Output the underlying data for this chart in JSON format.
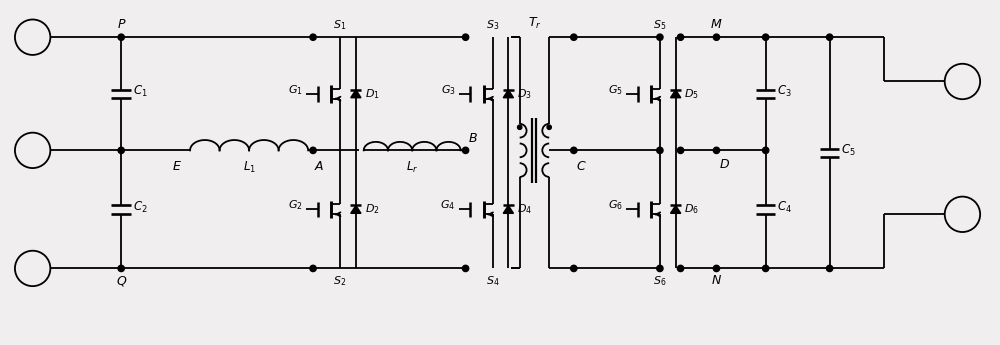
{
  "fig_width": 10.0,
  "fig_height": 3.45,
  "dpi": 100,
  "bg_color": "#f0eeee",
  "line_color": "black",
  "lw": 1.3,
  "xlim": [
    0,
    100
  ],
  "ylim": [
    0,
    34.5
  ],
  "y_top": 31.0,
  "y_mid": 19.5,
  "y_bot": 7.5,
  "x_left_circ": 2.5,
  "x_PQ": 11.5,
  "x_E": 18.0,
  "x_A": 31.0,
  "x_B": 46.5,
  "x_tr_center": 53.5,
  "x_C": 57.5,
  "x_S56": 64.5,
  "x_MN": 72.0,
  "x_C3C4": 77.0,
  "x_C5": 83.5,
  "x_right_L": 89.0,
  "x_right_circ": 97.0,
  "y_top_circ": 26.5,
  "y_bot_circ": 13.0
}
